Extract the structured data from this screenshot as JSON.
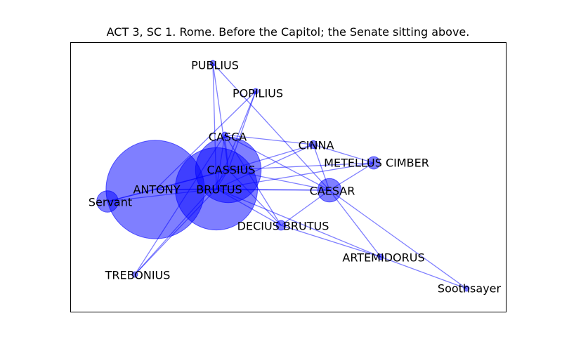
{
  "title": "ACT 3, SC 1. Rome. Before the Capitol; the Senate sitting above.",
  "colors": {
    "node": "#0000ff",
    "edge": "#0000ff",
    "frame": "#000000"
  },
  "nodes": [
    {
      "id": "PUBLIUS",
      "label": "PUBLIUS",
      "weight": 1
    },
    {
      "id": "POPILIUS",
      "label": "POPILIUS",
      "weight": 1
    },
    {
      "id": "CASCA",
      "label": "CASCA",
      "weight": 1
    },
    {
      "id": "CINNA",
      "label": "CINNA",
      "weight": 2
    },
    {
      "id": "METELLUS",
      "label": "METELLUS CIMBER",
      "weight": 5
    },
    {
      "id": "CASSIUS",
      "label": "CASSIUS",
      "weight": 140
    },
    {
      "id": "ANTONY",
      "label": "ANTONY",
      "weight": 315
    },
    {
      "id": "BRUTUS",
      "label": "BRUTUS",
      "weight": 220
    },
    {
      "id": "Servant",
      "label": "Servant",
      "weight": 15
    },
    {
      "id": "CAESAR",
      "label": "CAESAR",
      "weight": 18
    },
    {
      "id": "DECIUS",
      "label": "DECIUS BRUTUS",
      "weight": 3
    },
    {
      "id": "ARTEMIDORUS",
      "label": "ARTEMIDORUS",
      "weight": 1
    },
    {
      "id": "TREBONIUS",
      "label": "TREBONIUS",
      "weight": 1
    },
    {
      "id": "Soothsayer",
      "label": "Soothsayer",
      "weight": 1
    }
  ],
  "edges": [
    [
      "PUBLIUS",
      "BRUTUS"
    ],
    [
      "PUBLIUS",
      "CASSIUS"
    ],
    [
      "PUBLIUS",
      "CAESAR"
    ],
    [
      "POPILIUS",
      "BRUTUS"
    ],
    [
      "POPILIUS",
      "CASSIUS"
    ],
    [
      "POPILIUS",
      "ANTONY"
    ],
    [
      "CASCA",
      "CASSIUS"
    ],
    [
      "CASCA",
      "BRUTUS"
    ],
    [
      "CASCA",
      "CAESAR"
    ],
    [
      "CASCA",
      "DECIUS"
    ],
    [
      "CASCA",
      "TREBONIUS"
    ],
    [
      "CASCA",
      "CINNA"
    ],
    [
      "CINNA",
      "CASSIUS"
    ],
    [
      "CINNA",
      "BRUTUS"
    ],
    [
      "CINNA",
      "METELLUS"
    ],
    [
      "CINNA",
      "CAESAR"
    ],
    [
      "METELLUS",
      "CASSIUS"
    ],
    [
      "METELLUS",
      "CAESAR"
    ],
    [
      "METELLUS",
      "BRUTUS"
    ],
    [
      "CASSIUS",
      "BRUTUS"
    ],
    [
      "CASSIUS",
      "ANTONY"
    ],
    [
      "CASSIUS",
      "CAESAR"
    ],
    [
      "CASSIUS",
      "DECIUS"
    ],
    [
      "CASSIUS",
      "TREBONIUS"
    ],
    [
      "ANTONY",
      "BRUTUS"
    ],
    [
      "ANTONY",
      "Servant"
    ],
    [
      "ANTONY",
      "CAESAR"
    ],
    [
      "Servant",
      "BRUTUS"
    ],
    [
      "Servant",
      "CASSIUS"
    ],
    [
      "BRUTUS",
      "CAESAR"
    ],
    [
      "BRUTUS",
      "DECIUS"
    ],
    [
      "BRUTUS",
      "TREBONIUS"
    ],
    [
      "BRUTUS",
      "ARTEMIDORUS"
    ],
    [
      "CAESAR",
      "DECIUS"
    ],
    [
      "CAESAR",
      "ARTEMIDORUS"
    ],
    [
      "CAESAR",
      "Soothsayer"
    ],
    [
      "DECIUS",
      "ARTEMIDORUS"
    ],
    [
      "ARTEMIDORUS",
      "Soothsayer"
    ]
  ]
}
